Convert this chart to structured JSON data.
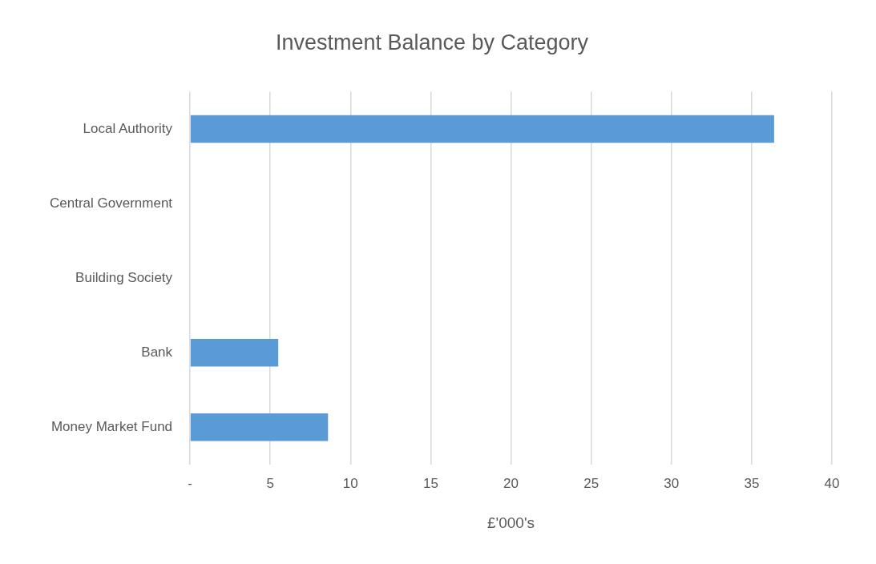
{
  "chart_data": {
    "type": "bar",
    "orientation": "horizontal",
    "title": "Investment Balance by Category",
    "xlabel": "£'000's",
    "categories": [
      "Local Authority",
      "Central Government",
      "Building Society",
      "Bank",
      "Money Market Fund"
    ],
    "values": [
      36.4,
      0,
      0,
      5.5,
      8.6
    ],
    "color": "#5b9bd5",
    "xlim": [
      0,
      40
    ],
    "xticks": [
      {
        "value": 0,
        "label": "-"
      },
      5,
      10,
      15,
      20,
      25,
      30,
      35,
      40
    ],
    "grid": "x",
    "legend": false
  }
}
